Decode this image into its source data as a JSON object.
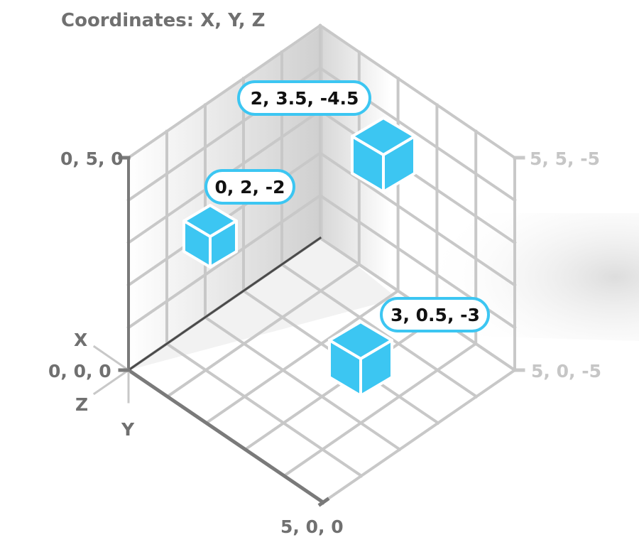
{
  "title": "Coordinates: X, Y, Z",
  "axis_letters": {
    "x": "X",
    "z": "Z",
    "y": "Y"
  },
  "corner_labels": {
    "origin": "0, 0, 0",
    "top_left": "0, 5, 0",
    "top_right": "5, 5, -5",
    "bottom_right": "5, 0, -5",
    "bottom": "5, 0, 0"
  },
  "points": [
    {
      "label": "0, 2, -2"
    },
    {
      "label": "2, 3.5, -4.5"
    },
    {
      "label": "3, 0.5, -3"
    }
  ],
  "colors": {
    "cube_fill": "#3cc6f2",
    "cube_stroke": "#ffffff",
    "callout_border": "#3cc6f2",
    "grid": "#c8c8c8",
    "axis_dark": "#7a7a7a",
    "label_dark": "#707070",
    "label_light": "#c6c6c6"
  }
}
